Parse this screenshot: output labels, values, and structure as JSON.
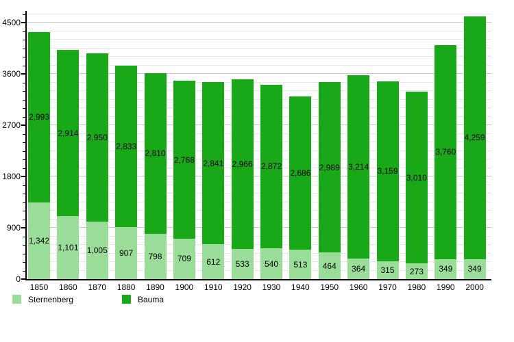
{
  "chart_data": {
    "type": "bar",
    "stacked": true,
    "title": "",
    "xlabel": "",
    "ylabel": "",
    "grid": true,
    "legend_position": "bottom",
    "categories": [
      "1850",
      "1860",
      "1870",
      "1880",
      "1890",
      "1900",
      "1910",
      "1920",
      "1930",
      "1940",
      "1950",
      "1960",
      "1970",
      "1980",
      "1990",
      "2000"
    ],
    "series": [
      {
        "name": "Sternenberg",
        "color": "#99dd99",
        "values": [
          1342,
          1101,
          1005,
          907,
          798,
          709,
          612,
          533,
          540,
          513,
          464,
          364,
          315,
          273,
          349,
          349
        ],
        "labels": [
          "1,342",
          "1,101",
          "1,005",
          "907",
          "798",
          "709",
          "612",
          "533",
          "540",
          "513",
          "464",
          "364",
          "315",
          "273",
          "349",
          "349"
        ]
      },
      {
        "name": "Bauma",
        "color": "#18a818",
        "values": [
          2993,
          2914,
          2950,
          2833,
          2810,
          2768,
          2841,
          2966,
          2872,
          2686,
          2989,
          3214,
          3159,
          3010,
          3760,
          4259
        ],
        "labels": [
          "2,993",
          "2,914",
          "2,950",
          "2,833",
          "2,810",
          "2,768",
          "2,841",
          "2,966",
          "2,872",
          "2,686",
          "2,989",
          "3,214",
          "3,159",
          "3,010",
          "3,760",
          "4,259"
        ]
      }
    ],
    "y_axis": {
      "tick_values": [
        0,
        900,
        1800,
        2700,
        3600,
        4500
      ],
      "tick_labels": [
        "0",
        "900",
        "1800",
        "2700",
        "3600",
        "4500"
      ],
      "minor_step": 150,
      "minor_max": 4650,
      "max": 4680
    },
    "legend": [
      {
        "label": "Sternenberg",
        "color": "#99dd99"
      },
      {
        "label": "Bauma",
        "color": "#18a818"
      }
    ]
  },
  "colors": {
    "background": "#ffffff",
    "axis": "#000000",
    "gridline_minor": "#e6e6e6",
    "gridline_major": "#c9c9c9",
    "text": "#000000",
    "sternenberg": "#99dd99",
    "bauma": "#18a818"
  }
}
